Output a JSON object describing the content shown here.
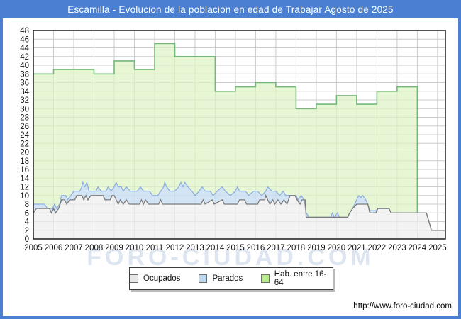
{
  "window": {
    "title": "Escamilla - Evolucion de la poblacion en edad de Trabajar Agosto de 2025"
  },
  "watermark": "FORO-CIUDAD.COM",
  "footer": {
    "url": "http://www.foro-ciudad.com"
  },
  "chart_data": {
    "type": "area",
    "title": "Escamilla - Evolucion de la poblacion en edad de Trabajar Agosto de 2025",
    "x_min": 2005,
    "x_max": 2025.39,
    "y_min": 0,
    "y_max": 48,
    "y_tick_step": 2,
    "grid": true,
    "legend_position": "bottom",
    "x_ticks": [
      2005,
      2006,
      2007,
      2008,
      2009,
      2010,
      2011,
      2012,
      2013,
      2014,
      2015,
      2016,
      2017,
      2018,
      2019,
      2020,
      2021,
      2022,
      2023,
      2024,
      2025
    ],
    "legend": [
      {
        "label": "Ocupados",
        "swatch": "#e7e7e7"
      },
      {
        "label": "Parados",
        "swatch": "#bed8f0"
      },
      {
        "label": "Hab. entre 16-64",
        "swatch": "#b8ec8c"
      }
    ],
    "series": [
      {
        "id": "ocupados",
        "name": "Ocupados",
        "kind": "line-area",
        "fill": "#eeeeee",
        "stroke": "#7a7a7a",
        "points": [
          [
            2005.0,
            6
          ],
          [
            2005.15,
            7
          ],
          [
            2005.8,
            7
          ],
          [
            2005.9,
            6
          ],
          [
            2006.0,
            7
          ],
          [
            2006.1,
            6
          ],
          [
            2006.25,
            7
          ],
          [
            2006.4,
            9
          ],
          [
            2006.55,
            9
          ],
          [
            2006.65,
            8
          ],
          [
            2006.8,
            9
          ],
          [
            2007.05,
            9
          ],
          [
            2007.15,
            10
          ],
          [
            2007.4,
            10
          ],
          [
            2007.5,
            9
          ],
          [
            2007.6,
            10
          ],
          [
            2007.7,
            9
          ],
          [
            2007.85,
            10
          ],
          [
            2008.45,
            10
          ],
          [
            2008.55,
            9
          ],
          [
            2008.8,
            9
          ],
          [
            2008.9,
            10
          ],
          [
            2009.0,
            10
          ],
          [
            2009.1,
            9
          ],
          [
            2009.2,
            8
          ],
          [
            2009.3,
            9
          ],
          [
            2009.45,
            8
          ],
          [
            2009.6,
            9
          ],
          [
            2009.75,
            8
          ],
          [
            2010.25,
            8
          ],
          [
            2010.35,
            9
          ],
          [
            2010.45,
            8
          ],
          [
            2010.55,
            9
          ],
          [
            2010.7,
            8
          ],
          [
            2011.2,
            8
          ],
          [
            2011.3,
            9
          ],
          [
            2011.4,
            8
          ],
          [
            2013.3,
            8
          ],
          [
            2013.4,
            9
          ],
          [
            2013.5,
            8
          ],
          [
            2013.85,
            9
          ],
          [
            2013.95,
            8
          ],
          [
            2014.35,
            9
          ],
          [
            2014.45,
            8
          ],
          [
            2015.1,
            8
          ],
          [
            2015.2,
            9
          ],
          [
            2015.45,
            9
          ],
          [
            2015.55,
            8
          ],
          [
            2016.1,
            8
          ],
          [
            2016.2,
            9
          ],
          [
            2016.45,
            9
          ],
          [
            2016.5,
            10
          ],
          [
            2016.6,
            9
          ],
          [
            2016.7,
            8
          ],
          [
            2016.85,
            9
          ],
          [
            2016.95,
            8
          ],
          [
            2017.1,
            9
          ],
          [
            2017.25,
            8
          ],
          [
            2017.4,
            9
          ],
          [
            2017.55,
            8
          ],
          [
            2017.7,
            10
          ],
          [
            2017.95,
            10
          ],
          [
            2018.05,
            9
          ],
          [
            2018.2,
            8
          ],
          [
            2018.3,
            9
          ],
          [
            2018.45,
            9
          ],
          [
            2018.5,
            5
          ],
          [
            2020.55,
            5
          ],
          [
            2020.65,
            6
          ],
          [
            2020.8,
            7
          ],
          [
            2021.0,
            8
          ],
          [
            2021.55,
            8
          ],
          [
            2021.65,
            6
          ],
          [
            2021.95,
            6
          ],
          [
            2022.05,
            7
          ],
          [
            2022.6,
            7
          ],
          [
            2022.7,
            6
          ],
          [
            2024.45,
            6
          ],
          [
            2024.7,
            2
          ],
          [
            2025.39,
            2
          ]
        ]
      },
      {
        "id": "parados",
        "name": "Parados",
        "kind": "stacked-band-top",
        "fill": "#c8def3",
        "stroke": "#8fb0de",
        "note": "points are Ocupados+Parados totals (top of blue band)",
        "points": [
          [
            2005.0,
            8
          ],
          [
            2005.55,
            8
          ],
          [
            2005.7,
            7
          ],
          [
            2005.95,
            7
          ],
          [
            2006.05,
            8
          ],
          [
            2006.15,
            7
          ],
          [
            2006.3,
            8
          ],
          [
            2006.4,
            10
          ],
          [
            2006.6,
            10
          ],
          [
            2006.7,
            9
          ],
          [
            2006.85,
            10
          ],
          [
            2007.0,
            11
          ],
          [
            2007.3,
            11
          ],
          [
            2007.4,
            12
          ],
          [
            2007.45,
            13
          ],
          [
            2007.55,
            12
          ],
          [
            2007.65,
            13
          ],
          [
            2007.75,
            11
          ],
          [
            2008.1,
            11
          ],
          [
            2008.2,
            12
          ],
          [
            2008.35,
            11
          ],
          [
            2008.6,
            11
          ],
          [
            2008.7,
            12
          ],
          [
            2008.85,
            11
          ],
          [
            2009.0,
            12
          ],
          [
            2009.1,
            13
          ],
          [
            2009.2,
            12
          ],
          [
            2009.35,
            12
          ],
          [
            2009.45,
            11
          ],
          [
            2009.6,
            12
          ],
          [
            2009.8,
            11
          ],
          [
            2010.15,
            11
          ],
          [
            2010.3,
            12
          ],
          [
            2010.45,
            11
          ],
          [
            2010.75,
            11
          ],
          [
            2010.9,
            10
          ],
          [
            2011.15,
            10
          ],
          [
            2011.3,
            11
          ],
          [
            2011.45,
            12
          ],
          [
            2011.5,
            13
          ],
          [
            2011.6,
            12
          ],
          [
            2011.75,
            11
          ],
          [
            2012.0,
            11
          ],
          [
            2012.2,
            12
          ],
          [
            2012.3,
            13
          ],
          [
            2012.4,
            12
          ],
          [
            2012.5,
            13
          ],
          [
            2012.65,
            12
          ],
          [
            2012.85,
            11
          ],
          [
            2013.0,
            10
          ],
          [
            2013.2,
            11
          ],
          [
            2013.35,
            12
          ],
          [
            2013.5,
            11
          ],
          [
            2013.75,
            11
          ],
          [
            2013.9,
            10
          ],
          [
            2014.1,
            11
          ],
          [
            2014.35,
            12
          ],
          [
            2014.5,
            11
          ],
          [
            2014.75,
            10
          ],
          [
            2015.0,
            11
          ],
          [
            2015.1,
            12
          ],
          [
            2015.2,
            11
          ],
          [
            2015.5,
            11
          ],
          [
            2015.65,
            10
          ],
          [
            2015.9,
            11
          ],
          [
            2016.1,
            11
          ],
          [
            2016.3,
            10
          ],
          [
            2016.5,
            11
          ],
          [
            2016.6,
            12
          ],
          [
            2016.8,
            11
          ],
          [
            2017.0,
            11
          ],
          [
            2017.2,
            10
          ],
          [
            2017.35,
            11
          ],
          [
            2017.5,
            10
          ],
          [
            2018.0,
            10
          ],
          [
            2018.1,
            9
          ],
          [
            2018.25,
            10
          ],
          [
            2018.4,
            9
          ],
          [
            2018.5,
            6
          ],
          [
            2018.65,
            5
          ],
          [
            2019.7,
            5
          ],
          [
            2019.8,
            6
          ],
          [
            2019.9,
            5
          ],
          [
            2020.05,
            6
          ],
          [
            2020.15,
            5
          ],
          [
            2020.55,
            5
          ],
          [
            2020.65,
            6
          ],
          [
            2020.8,
            7
          ],
          [
            2021.0,
            9
          ],
          [
            2021.1,
            10
          ],
          [
            2021.2,
            9.5
          ],
          [
            2021.3,
            10
          ],
          [
            2021.45,
            9
          ],
          [
            2021.55,
            8
          ],
          [
            2021.65,
            6.5
          ],
          [
            2021.95,
            6.5
          ],
          [
            2022.05,
            7
          ],
          [
            2022.6,
            7
          ],
          [
            2022.7,
            6
          ],
          [
            2024.45,
            6
          ],
          [
            2024.7,
            2
          ],
          [
            2025.39,
            2
          ]
        ]
      },
      {
        "id": "hab_16_64",
        "name": "Hab. entre 16-64",
        "kind": "step-area",
        "fill": "#def3c3",
        "stroke": "#74b878",
        "start_year": 2005,
        "end_x": 2024,
        "values_by_year": [
          38,
          39,
          39,
          38,
          41,
          39,
          45,
          42,
          42,
          34,
          35,
          36,
          35,
          30,
          31,
          33,
          31,
          34,
          35
        ]
      }
    ]
  }
}
